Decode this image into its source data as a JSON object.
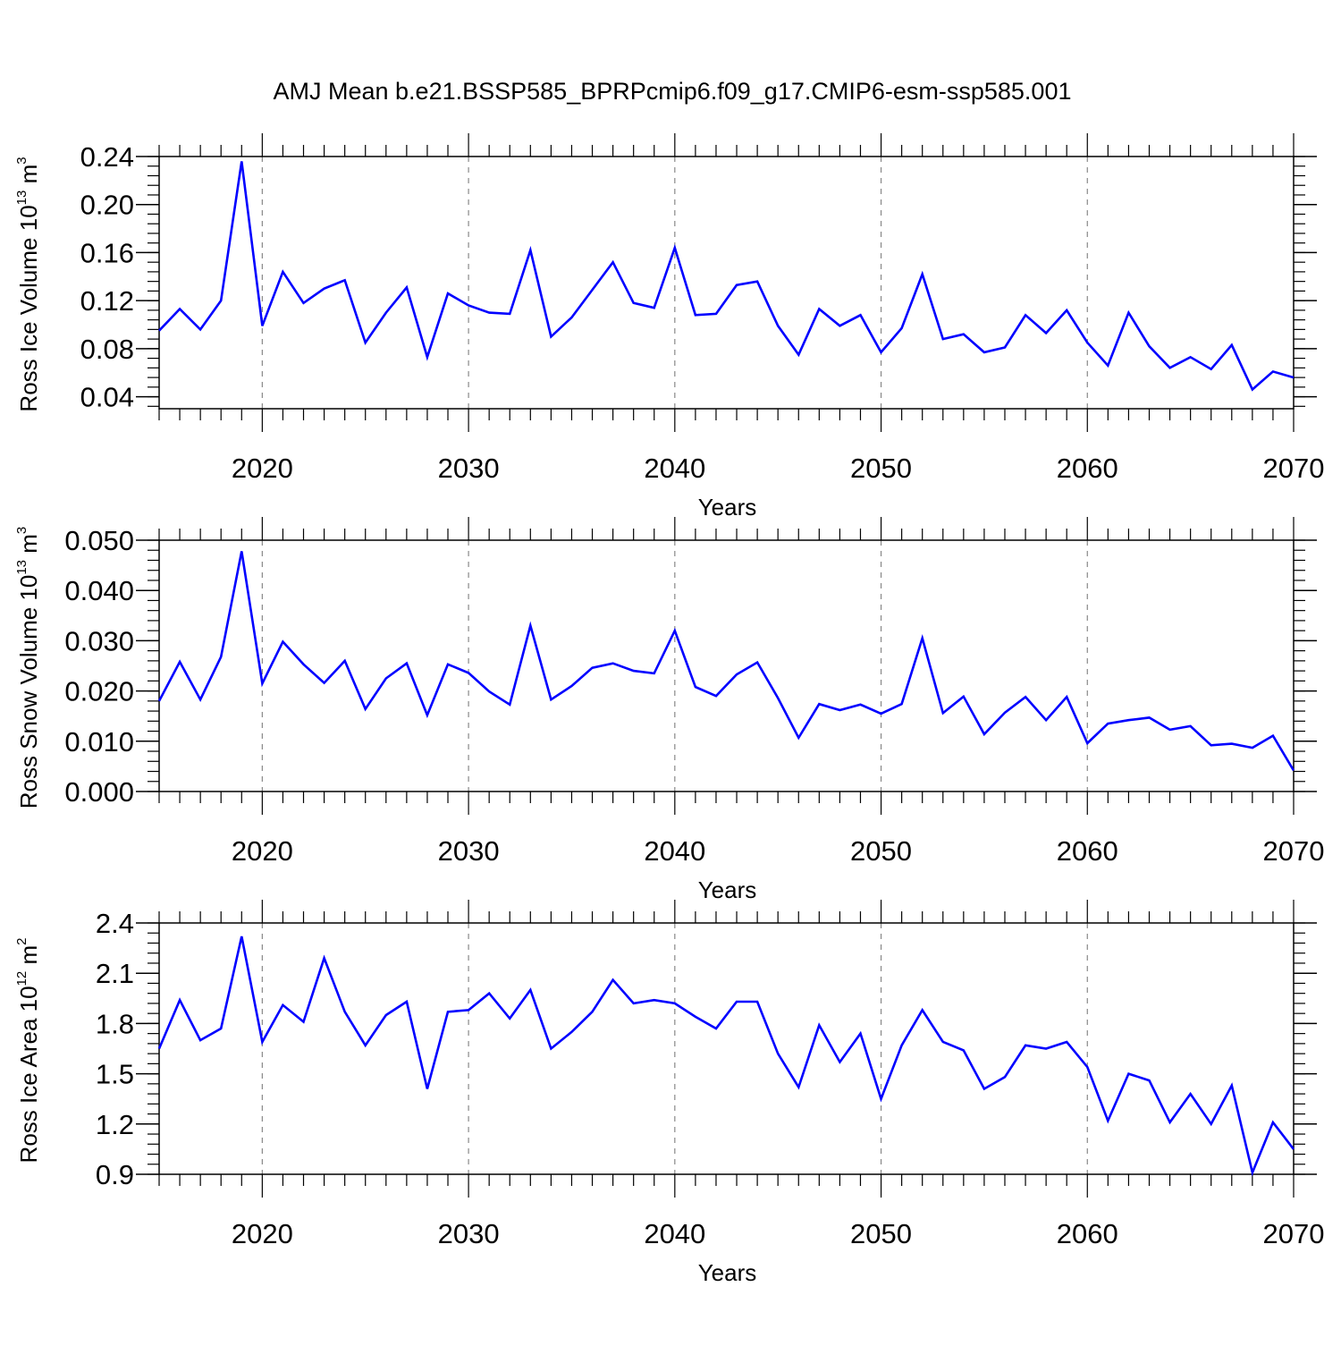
{
  "title": "AMJ Mean b.e21.BSSP585_BPRPcmip6.f09_g17.CMIP6-esm-ssp585.001",
  "colors": {
    "line": "#0000ff",
    "axis": "#000000",
    "grid": "#888888"
  },
  "chart_data": [
    {
      "type": "line",
      "xlabel": "Years",
      "ylabel": {
        "text": "Ross Ice Volume 10",
        "sup": "13",
        "unit": " m",
        "unit_sup": "3"
      },
      "xlim": [
        2015,
        2070
      ],
      "ylim": [
        0.03,
        0.24
      ],
      "yticks": [
        "0.04",
        "0.08",
        "0.12",
        "0.16",
        "0.20",
        "0.24"
      ],
      "xticks": [
        "2020",
        "2030",
        "2040",
        "2050",
        "2060",
        "2070"
      ],
      "grid": "dashed vertical at decades",
      "x": [
        2015,
        2016,
        2017,
        2018,
        2019,
        2020,
        2021,
        2022,
        2023,
        2024,
        2025,
        2026,
        2027,
        2028,
        2029,
        2030,
        2031,
        2032,
        2033,
        2034,
        2035,
        2036,
        2037,
        2038,
        2039,
        2040,
        2041,
        2042,
        2043,
        2044,
        2045,
        2046,
        2047,
        2048,
        2049,
        2050,
        2051,
        2052,
        2053,
        2054,
        2055,
        2056,
        2057,
        2058,
        2059,
        2060,
        2061,
        2062,
        2063,
        2064,
        2065,
        2066,
        2067,
        2068,
        2069,
        2070
      ],
      "values": [
        0.095,
        0.113,
        0.096,
        0.12,
        0.236,
        0.099,
        0.144,
        0.118,
        0.13,
        0.137,
        0.085,
        0.11,
        0.131,
        0.073,
        0.126,
        0.116,
        0.11,
        0.109,
        0.162,
        0.09,
        0.106,
        0.129,
        0.152,
        0.118,
        0.114,
        0.164,
        0.108,
        0.109,
        0.133,
        0.136,
        0.099,
        0.075,
        0.113,
        0.099,
        0.108,
        0.077,
        0.097,
        0.142,
        0.088,
        0.092,
        0.077,
        0.081,
        0.108,
        0.093,
        0.112,
        0.085,
        0.066,
        0.11,
        0.082,
        0.064,
        0.073,
        0.063,
        0.083,
        0.046,
        0.061,
        0.056
      ]
    },
    {
      "type": "line",
      "xlabel": "Years",
      "ylabel": {
        "text": "Ross Snow Volume 10",
        "sup": "13",
        "unit": " m",
        "unit_sup": "3"
      },
      "xlim": [
        2015,
        2070
      ],
      "ylim": [
        0.0,
        0.05
      ],
      "yticks": [
        "0.000",
        "0.010",
        "0.020",
        "0.030",
        "0.040",
        "0.050"
      ],
      "xticks": [
        "2020",
        "2030",
        "2040",
        "2050",
        "2060",
        "2070"
      ],
      "grid": "dashed vertical at decades",
      "x": [
        2015,
        2016,
        2017,
        2018,
        2019,
        2020,
        2021,
        2022,
        2023,
        2024,
        2025,
        2026,
        2027,
        2028,
        2029,
        2030,
        2031,
        2032,
        2033,
        2034,
        2035,
        2036,
        2037,
        2038,
        2039,
        2040,
        2041,
        2042,
        2043,
        2044,
        2045,
        2046,
        2047,
        2048,
        2049,
        2050,
        2051,
        2052,
        2053,
        2054,
        2055,
        2056,
        2057,
        2058,
        2059,
        2060,
        2061,
        2062,
        2063,
        2064,
        2065,
        2066,
        2067,
        2068,
        2069,
        2070
      ],
      "values": [
        0.018,
        0.0258,
        0.0183,
        0.0268,
        0.0478,
        0.0215,
        0.0298,
        0.0253,
        0.0216,
        0.026,
        0.0164,
        0.0225,
        0.0255,
        0.0152,
        0.0253,
        0.0236,
        0.0199,
        0.0173,
        0.033,
        0.0183,
        0.021,
        0.0246,
        0.0255,
        0.024,
        0.0235,
        0.032,
        0.0208,
        0.019,
        0.0233,
        0.0257,
        0.0186,
        0.0107,
        0.0174,
        0.0162,
        0.0173,
        0.0155,
        0.0174,
        0.0305,
        0.0156,
        0.0189,
        0.0114,
        0.0157,
        0.0188,
        0.0142,
        0.0188,
        0.0096,
        0.0135,
        0.0142,
        0.0147,
        0.0123,
        0.013,
        0.0092,
        0.0095,
        0.0087,
        0.0111,
        0.0042
      ]
    },
    {
      "type": "line",
      "xlabel": "Years",
      "ylabel": {
        "text": "Ross Ice Area 10",
        "sup": "12",
        "unit": " m",
        "unit_sup": "2"
      },
      "xlim": [
        2015,
        2070
      ],
      "ylim": [
        0.9,
        2.4
      ],
      "yticks": [
        "0.9",
        "1.2",
        "1.5",
        "1.8",
        "2.1",
        "2.4"
      ],
      "xticks": [
        "2020",
        "2030",
        "2040",
        "2050",
        "2060",
        "2070"
      ],
      "grid": "dashed vertical at decades",
      "x": [
        2015,
        2016,
        2017,
        2018,
        2019,
        2020,
        2021,
        2022,
        2023,
        2024,
        2025,
        2026,
        2027,
        2028,
        2029,
        2030,
        2031,
        2032,
        2033,
        2034,
        2035,
        2036,
        2037,
        2038,
        2039,
        2040,
        2041,
        2042,
        2043,
        2044,
        2045,
        2046,
        2047,
        2048,
        2049,
        2050,
        2051,
        2052,
        2053,
        2054,
        2055,
        2056,
        2057,
        2058,
        2059,
        2060,
        2061,
        2062,
        2063,
        2064,
        2065,
        2066,
        2067,
        2068,
        2069,
        2070
      ],
      "values": [
        1.65,
        1.94,
        1.7,
        1.77,
        2.32,
        1.69,
        1.91,
        1.81,
        2.19,
        1.87,
        1.67,
        1.85,
        1.93,
        1.41,
        1.87,
        1.88,
        1.98,
        1.83,
        2.0,
        1.65,
        1.75,
        1.87,
        2.06,
        1.92,
        1.94,
        1.92,
        1.84,
        1.77,
        1.93,
        1.93,
        1.62,
        1.42,
        1.79,
        1.57,
        1.74,
        1.35,
        1.67,
        1.88,
        1.69,
        1.64,
        1.41,
        1.48,
        1.67,
        1.65,
        1.69,
        1.54,
        1.22,
        1.5,
        1.46,
        1.21,
        1.38,
        1.2,
        1.43,
        0.91,
        1.21,
        1.05
      ]
    }
  ]
}
